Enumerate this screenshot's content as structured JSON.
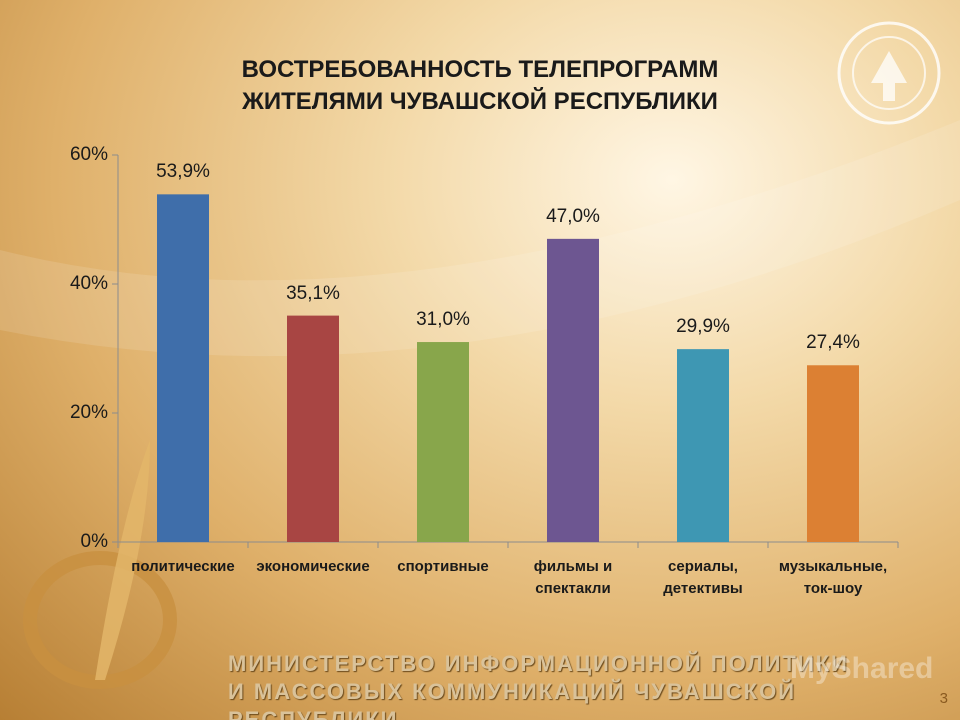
{
  "chart_data": {
    "type": "bar",
    "title": "ВОСТРЕБОВАННОСТЬ ТЕЛЕПРОГРАММ\nЖИТЕЛЯМИ ЧУВАШСКОЙ РЕСПУБЛИКИ",
    "categories": [
      "политические",
      "экономические",
      "спортивные",
      "фильмы и\nспектакли",
      "сериалы,\nдетективы",
      "музыкальные,\nток-шоу"
    ],
    "values": [
      53.9,
      35.1,
      31.0,
      47.0,
      29.9,
      27.4
    ],
    "value_labels": [
      "53,9%",
      "35,1%",
      "31,0%",
      "47,0%",
      "29,9%",
      "27,4%"
    ],
    "colors": [
      "#3f6eaa",
      "#a84543",
      "#88a64b",
      "#6d5691",
      "#3e97b3",
      "#dc8033"
    ],
    "ylim": [
      0,
      60
    ],
    "yticks": [
      {
        "value": 0,
        "label": "0%"
      },
      {
        "value": 20,
        "label": "20%"
      },
      {
        "value": 40,
        "label": "40%"
      },
      {
        "value": 60,
        "label": "60%"
      }
    ],
    "grid": false
  },
  "footer": {
    "ministry": "МИНИСТЕРСТВО ИНФОРМАЦИОННОЙ ПОЛИТИКИ\nИ МАССОВЫХ КОММУНИКАЦИЙ ЧУВАШСКОЙ РЕСПУБЛИКИ",
    "page_number": "3",
    "watermark": "MyShared"
  }
}
